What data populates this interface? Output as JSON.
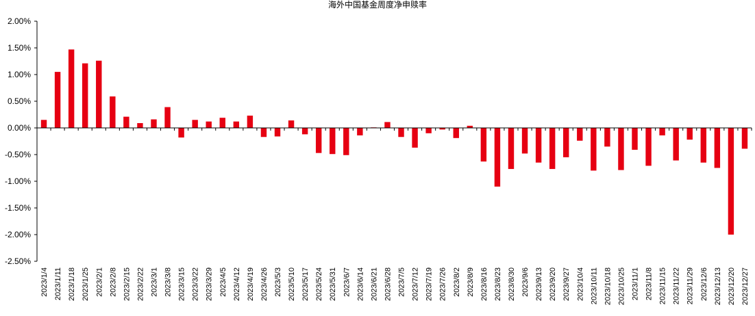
{
  "chart_data": {
    "type": "bar",
    "title": "海外中国基金周度净申赎率",
    "xlabel": "",
    "ylabel": "",
    "ylim": [
      -2.5,
      2.0
    ],
    "yticks": [
      2.0,
      1.5,
      1.0,
      0.5,
      0.0,
      -0.5,
      -1.0,
      -1.5,
      -2.0,
      -2.5
    ],
    "ytick_labels": [
      "2.00%",
      "1.50%",
      "1.00%",
      "0.50%",
      "0.00%",
      "-0.50%",
      "-1.00%",
      "-1.50%",
      "-2.00%",
      "-2.50%"
    ],
    "grid": false,
    "bar_color": "#e60012",
    "categories": [
      "2023/1/4",
      "2023/1/11",
      "2023/1/18",
      "2023/1/25",
      "2023/2/1",
      "2023/2/8",
      "2023/2/15",
      "2023/2/22",
      "2023/3/1",
      "2023/3/8",
      "2023/3/15",
      "2023/3/22",
      "2023/3/29",
      "2023/4/5",
      "2023/4/12",
      "2023/4/19",
      "2023/4/26",
      "2023/5/3",
      "2023/5/10",
      "2023/5/17",
      "2023/5/24",
      "2023/5/31",
      "2023/6/7",
      "2023/6/14",
      "2023/6/21",
      "2023/6/28",
      "2023/7/5",
      "2023/7/12",
      "2023/7/19",
      "2023/7/26",
      "2023/8/2",
      "2023/8/9",
      "2023/8/16",
      "2023/8/23",
      "2023/8/30",
      "2023/9/6",
      "2023/9/13",
      "2023/9/20",
      "2023/9/27",
      "2023/10/4",
      "2023/10/11",
      "2023/10/18",
      "2023/10/25",
      "2023/11/1",
      "2023/11/8",
      "2023/11/15",
      "2023/11/22",
      "2023/11/29",
      "2023/12/6",
      "2023/12/13",
      "2023/12/20",
      "2023/12/27"
    ],
    "values": [
      0.15,
      1.05,
      1.47,
      1.21,
      1.26,
      0.59,
      0.21,
      0.09,
      0.16,
      0.39,
      -0.18,
      0.15,
      0.12,
      0.19,
      0.12,
      0.23,
      -0.17,
      -0.16,
      0.14,
      -0.12,
      -0.47,
      -0.49,
      -0.51,
      -0.14,
      0.01,
      0.11,
      -0.17,
      -0.37,
      -0.1,
      -0.03,
      -0.19,
      0.04,
      -0.63,
      -1.1,
      -0.77,
      -0.48,
      -0.65,
      -0.77,
      -0.55,
      -0.24,
      -0.8,
      -0.35,
      -0.79,
      -0.41,
      -0.71,
      -0.14,
      -0.61,
      -0.22,
      -0.65,
      -0.75,
      -2.0,
      -0.39
    ]
  }
}
